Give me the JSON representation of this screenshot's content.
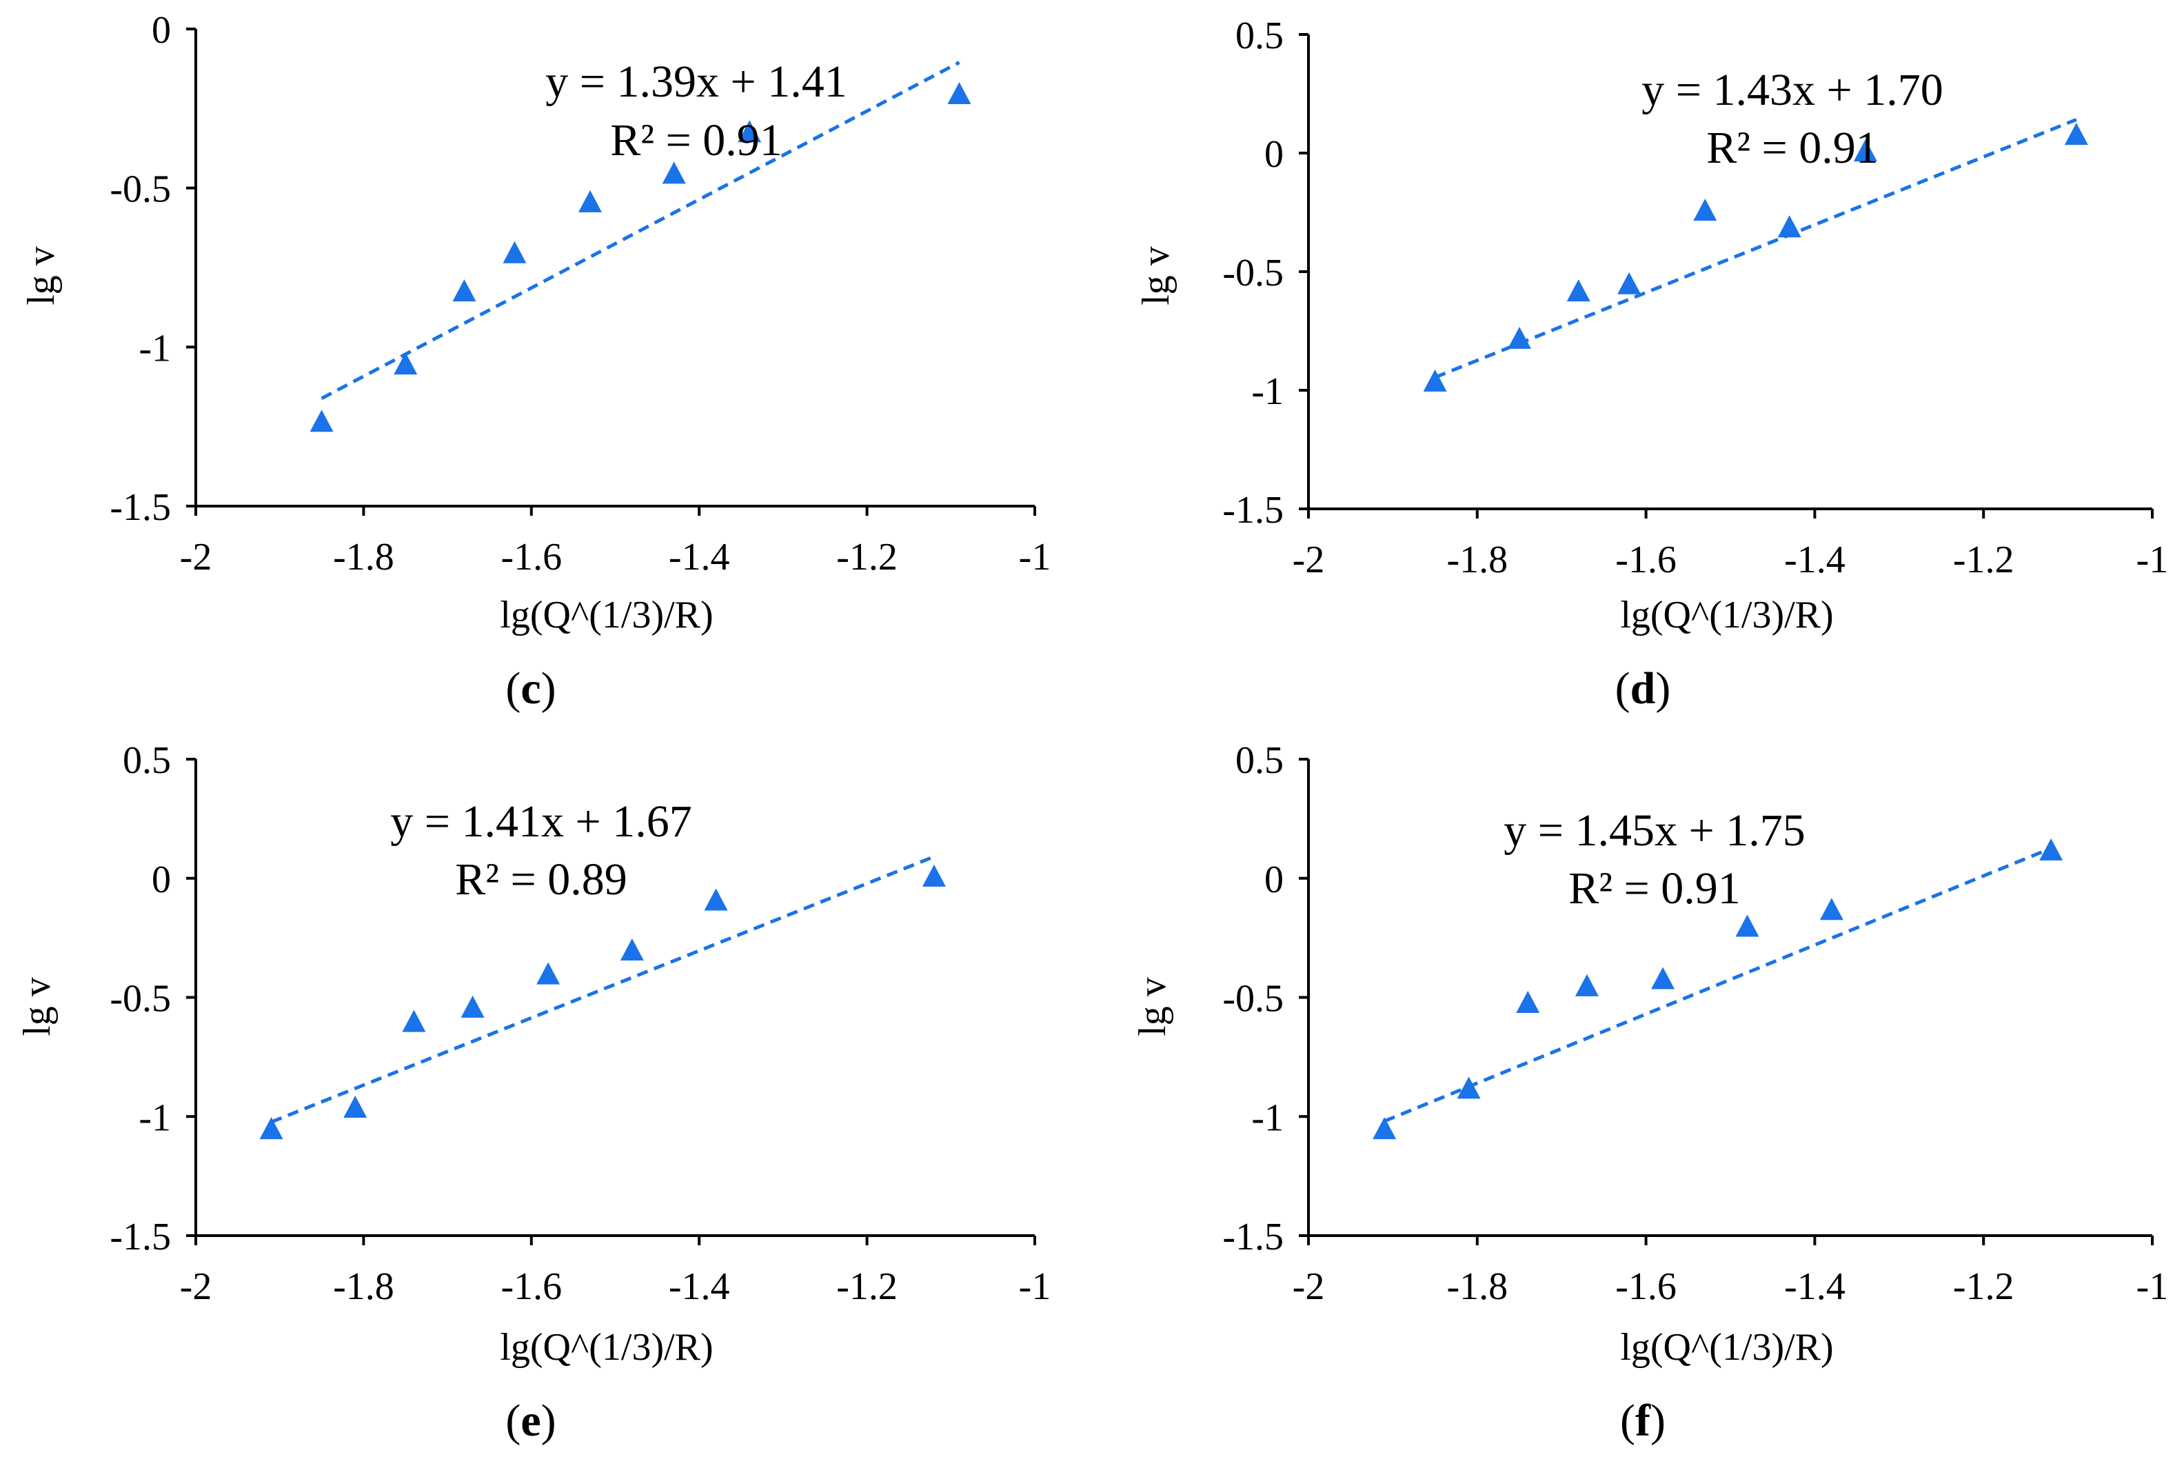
{
  "figure": {
    "marker_color": "#1a73e8",
    "trend_color": "#1a73e8"
  },
  "chart_data": [
    {
      "panel": "c",
      "panel_label_open": "(",
      "panel_label_letter": "c",
      "panel_label_close": ")",
      "type": "scatter",
      "title": "",
      "xlabel": "lg(Q^(1/3)/R)",
      "ylabel": "lg v",
      "xlim": [
        -2,
        -1
      ],
      "ylim": [
        -1.5,
        0
      ],
      "xticks": [
        "-2",
        "-1.8",
        "-1.6",
        "-1.4",
        "-1.2",
        "-1"
      ],
      "xtick_values": [
        -2,
        -1.8,
        -1.6,
        -1.4,
        -1.2,
        -1
      ],
      "yticks": [
        "-1.5",
        "-1",
        "-0.5",
        "0"
      ],
      "ytick_values": [
        -1.5,
        -1,
        -0.5,
        0
      ],
      "x": [
        -1.85,
        -1.75,
        -1.68,
        -1.62,
        -1.53,
        -1.43,
        -1.34,
        -1.09
      ],
      "y": [
        -1.24,
        -1.06,
        -0.83,
        -0.71,
        -0.55,
        -0.46,
        -0.33,
        -0.21
      ],
      "trendline": {
        "slope": 1.39,
        "intercept": 1.41,
        "x_range": [
          -1.85,
          -1.09
        ]
      },
      "equation": "y = 1.39x + 1.41",
      "r_squared": "R² = 0.91"
    },
    {
      "panel": "d",
      "panel_label_open": "(",
      "panel_label_letter": "d",
      "panel_label_close": ")",
      "type": "scatter",
      "title": "",
      "xlabel": "lg(Q^(1/3)/R)",
      "ylabel": "lg v",
      "xlim": [
        -2,
        -1
      ],
      "ylim": [
        -1.5,
        0.5
      ],
      "xticks": [
        "-2",
        "-1.8",
        "-1.6",
        "-1.4",
        "-1.2",
        "-1"
      ],
      "xtick_values": [
        -2,
        -1.8,
        -1.6,
        -1.4,
        -1.2,
        -1
      ],
      "yticks": [
        "-1.5",
        "-1",
        "-0.5",
        "0",
        "0.5"
      ],
      "ytick_values": [
        -1.5,
        -1,
        -0.5,
        0,
        0.5
      ],
      "x": [
        -1.85,
        -1.75,
        -1.68,
        -1.62,
        -1.53,
        -1.43,
        -1.34,
        -1.09
      ],
      "y": [
        -0.97,
        -0.79,
        -0.59,
        -0.56,
        -0.25,
        -0.32,
        0.0,
        0.07
      ],
      "trendline": {
        "slope": 1.43,
        "intercept": 1.7,
        "x_range": [
          -1.85,
          -1.09
        ]
      },
      "equation": "y = 1.43x + 1.70",
      "r_squared": "R² = 0.91"
    },
    {
      "panel": "e",
      "panel_label_open": "(",
      "panel_label_letter": "e",
      "panel_label_close": ")",
      "type": "scatter",
      "title": "",
      "xlabel": "lg(Q^(1/3)/R)",
      "ylabel": "lg v",
      "xlim": [
        -2,
        -1
      ],
      "ylim": [
        -1.5,
        0.5
      ],
      "xticks": [
        "-2",
        "-1.8",
        "-1.6",
        "-1.4",
        "-1.2",
        "-1"
      ],
      "xtick_values": [
        -2,
        -1.8,
        -1.6,
        -1.4,
        -1.2,
        -1
      ],
      "yticks": [
        "-1.5",
        "-1",
        "-0.5",
        "0",
        "0.5"
      ],
      "ytick_values": [
        -1.5,
        -1,
        -0.5,
        0,
        0.5
      ],
      "x": [
        -1.91,
        -1.81,
        -1.74,
        -1.67,
        -1.58,
        -1.48,
        -1.38,
        -1.12
      ],
      "y": [
        -1.06,
        -0.97,
        -0.61,
        -0.55,
        -0.41,
        -0.31,
        -0.1,
        0.0
      ],
      "trendline": {
        "slope": 1.41,
        "intercept": 1.67,
        "x_range": [
          -1.91,
          -1.12
        ]
      },
      "equation": "y = 1.41x + 1.67",
      "r_squared": "R² = 0.89"
    },
    {
      "panel": "f",
      "panel_label_open": "(",
      "panel_label_letter": "f",
      "panel_label_close": ")",
      "type": "scatter",
      "title": "",
      "xlabel": "lg(Q^(1/3)/R)",
      "ylabel": "lg v",
      "xlim": [
        -2,
        -1
      ],
      "ylim": [
        -1.5,
        0.5
      ],
      "xticks": [
        "-2",
        "-1.8",
        "-1.6",
        "-1.4",
        "-1.2",
        "-1"
      ],
      "xtick_values": [
        -2,
        -1.8,
        -1.6,
        -1.4,
        -1.2,
        -1
      ],
      "yticks": [
        "-1.5",
        "-1",
        "-0.5",
        "0",
        "0.5"
      ],
      "ytick_values": [
        -1.5,
        -1,
        -0.5,
        0,
        0.5
      ],
      "x": [
        -1.91,
        -1.81,
        -1.74,
        -1.67,
        -1.58,
        -1.48,
        -1.38,
        -1.12
      ],
      "y": [
        -1.06,
        -0.89,
        -0.53,
        -0.46,
        -0.43,
        -0.21,
        -0.14,
        0.11
      ],
      "trendline": {
        "slope": 1.45,
        "intercept": 1.75,
        "x_range": [
          -1.91,
          -1.12
        ]
      },
      "equation": "y = 1.45x + 1.75",
      "r_squared": "R² = 0.91"
    }
  ]
}
